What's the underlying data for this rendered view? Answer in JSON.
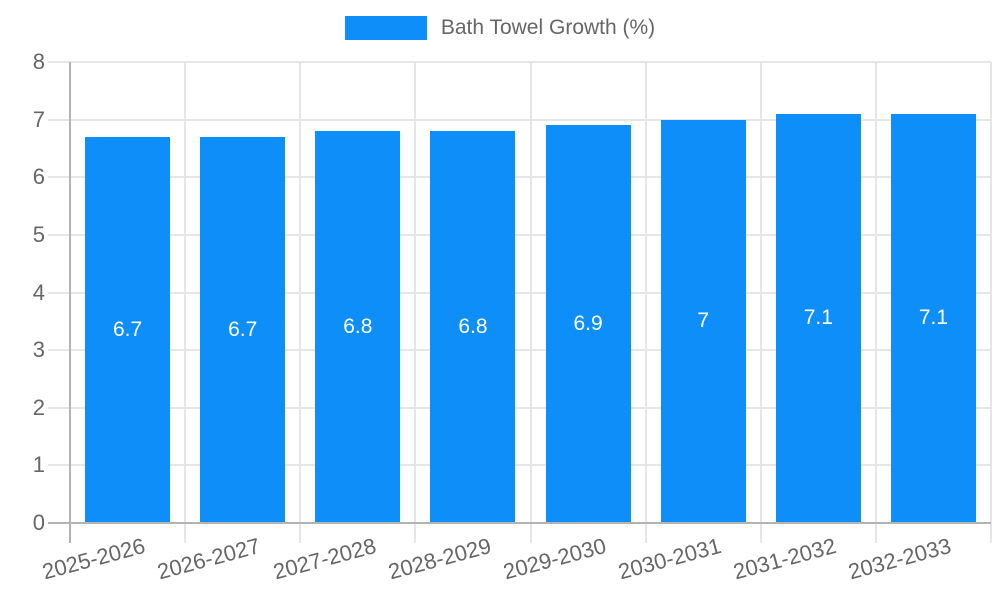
{
  "chart_data": {
    "type": "bar",
    "title": "",
    "categories": [
      "2025-2026",
      "2026-2027",
      "2027-2028",
      "2028-2029",
      "2029-2030",
      "2030-2031",
      "2031-2032",
      "2032-2033"
    ],
    "series": [
      {
        "name": "Bath Towel Growth (%)",
        "values": [
          6.7,
          6.7,
          6.8,
          6.8,
          6.9,
          7.0,
          7.1,
          7.1
        ],
        "color": "#0d8ef8"
      }
    ],
    "value_labels": [
      "6.7",
      "6.7",
      "6.8",
      "6.8",
      "6.9",
      "7",
      "7.1",
      "7.1"
    ],
    "ylim": [
      0,
      8
    ],
    "y_ticks": [
      "0",
      "1",
      "2",
      "3",
      "4",
      "5",
      "6",
      "7",
      "8"
    ],
    "grid": true,
    "legend_position": "top-center",
    "x_tick_rotation_deg": -15,
    "colors": {
      "bar": "#0d8ef8",
      "tick_label": "#666666",
      "grid": "#e6e6e6",
      "axis": "#b3b3b3",
      "value_label": "#ffffff",
      "background": "#ffffff"
    }
  }
}
